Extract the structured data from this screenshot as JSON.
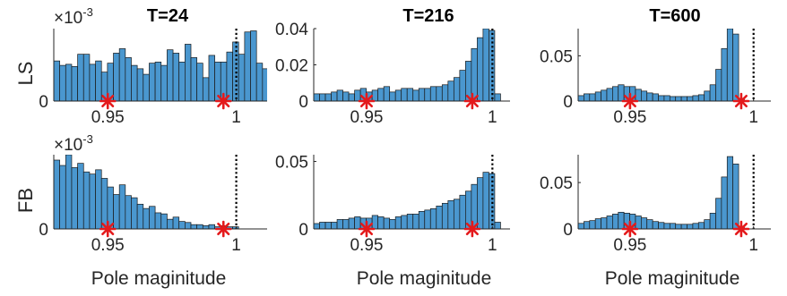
{
  "figure": {
    "row_labels": [
      "LS",
      "FB"
    ],
    "column_titles": [
      "T=24",
      "T=216",
      "T=600"
    ],
    "xlabel": "Pole maginitude",
    "exponent_label": "×10",
    "exponent_value": "-3",
    "colors": {
      "bar_fill": "#4a97cf",
      "bar_edge": "#1a1a1a",
      "marker": "#e41a1c",
      "vline": "#000000",
      "axis": "#262626"
    }
  },
  "chart_data": [
    {
      "type": "bar",
      "row": "LS",
      "title": "T=24",
      "xlabel": "",
      "xlim": [
        0.929,
        1.012
      ],
      "ylim": [
        0,
        0.0065
      ],
      "xticks": [
        0.95,
        1
      ],
      "xtick_labels": [
        "0.95",
        "1"
      ],
      "yticks": [
        0
      ],
      "ytick_labels": [
        "0"
      ],
      "y_exponent": "-3",
      "grid": false,
      "bins": {
        "start": 0.929,
        "width": 0.00232
      },
      "values": [
        0.0036,
        0.0032,
        0.0033,
        0.0031,
        0.0042,
        0.0042,
        0.0033,
        0.0036,
        0.0026,
        0.0034,
        0.0043,
        0.0047,
        0.0039,
        0.0032,
        0.0029,
        0.0024,
        0.0034,
        0.0035,
        0.0032,
        0.0046,
        0.0043,
        0.0035,
        0.0051,
        0.0039,
        0.0034,
        0.0021,
        0.0041,
        0.0035,
        0.0035,
        0.0044,
        0.0053,
        0.0042,
        0.0062,
        0.0063,
        0.0034,
        0.0029
      ],
      "markers_x": [
        0.95,
        0.995
      ],
      "vline_x": 1
    },
    {
      "type": "bar",
      "row": "LS",
      "title": "T=216",
      "xlabel": "",
      "xlim": [
        0.929,
        1.007
      ],
      "ylim": [
        0,
        0.04
      ],
      "xticks": [
        0.95,
        1
      ],
      "xtick_labels": [
        "0.95",
        "1"
      ],
      "yticks": [
        0,
        0.02,
        0.04
      ],
      "ytick_labels": [
        "0",
        "0.02",
        "0.04"
      ],
      "grid": false,
      "bins": {
        "start": 0.929,
        "width": 0.00232
      },
      "values": [
        0.004,
        0.004,
        0.004,
        0.005,
        0.006,
        0.005,
        0.004,
        0.006,
        0.007,
        0.005,
        0.006,
        0.007,
        0.008,
        0.005,
        0.006,
        0.007,
        0.007,
        0.006,
        0.007,
        0.007,
        0.008,
        0.008,
        0.009,
        0.011,
        0.013,
        0.017,
        0.022,
        0.029,
        0.035,
        0.04,
        0.039,
        0.004
      ],
      "markers_x": [
        0.95,
        0.992
      ],
      "vline_x": 1
    },
    {
      "type": "bar",
      "row": "LS",
      "title": "T=600",
      "xlabel": "",
      "xlim": [
        0.929,
        1.007
      ],
      "ylim": [
        0,
        0.08
      ],
      "xticks": [
        0.95,
        1
      ],
      "xtick_labels": [
        "0.95",
        "1"
      ],
      "yticks": [
        0,
        0.05
      ],
      "ytick_labels": [
        "0",
        "0.05"
      ],
      "grid": false,
      "bins": {
        "start": 0.929,
        "width": 0.00232
      },
      "values": [
        0.006,
        0.008,
        0.008,
        0.01,
        0.012,
        0.014,
        0.016,
        0.018,
        0.016,
        0.016,
        0.013,
        0.011,
        0.009,
        0.008,
        0.006,
        0.006,
        0.005,
        0.005,
        0.005,
        0.005,
        0.006,
        0.007,
        0.011,
        0.018,
        0.035,
        0.058,
        0.08,
        0.074,
        0.003
      ],
      "markers_x": [
        0.95,
        0.995
      ],
      "vline_x": 1
    },
    {
      "type": "bar",
      "row": "FB",
      "title": "",
      "xlabel": "Pole maginitude",
      "xlim": [
        0.929,
        1.012
      ],
      "ylim": [
        0,
        0.0069
      ],
      "xticks": [
        0.95,
        1
      ],
      "xtick_labels": [
        "0.95",
        "1"
      ],
      "yticks": [
        0
      ],
      "ytick_labels": [
        "0"
      ],
      "y_exponent": "-3",
      "grid": false,
      "bins": {
        "start": 0.929,
        "width": 0.00232
      },
      "values": [
        0.0064,
        0.0059,
        0.0069,
        0.0057,
        0.0061,
        0.0053,
        0.0051,
        0.0055,
        0.0047,
        0.0039,
        0.0032,
        0.0041,
        0.0031,
        0.0029,
        0.0023,
        0.0019,
        0.0021,
        0.0015,
        0.0014,
        0.0009,
        0.0011,
        0.0007,
        0.0006,
        0.0004,
        0.0004,
        0.0003,
        0.0004,
        0.0002,
        0.0003,
        0.0002,
        0.0002
      ],
      "markers_x": [
        0.95,
        0.995
      ],
      "vline_x": 1
    },
    {
      "type": "bar",
      "row": "FB",
      "title": "",
      "xlabel": "Pole maginitude",
      "xlim": [
        0.929,
        1.007
      ],
      "ylim": [
        0,
        0.055
      ],
      "xticks": [
        0.95,
        1
      ],
      "xtick_labels": [
        "0.95",
        "1"
      ],
      "yticks": [
        0,
        0.05
      ],
      "ytick_labels": [
        "0",
        "0.05"
      ],
      "grid": false,
      "bins": {
        "start": 0.929,
        "width": 0.00232
      },
      "values": [
        0.004,
        0.005,
        0.005,
        0.005,
        0.007,
        0.007,
        0.008,
        0.009,
        0.008,
        0.008,
        0.01,
        0.009,
        0.008,
        0.007,
        0.009,
        0.01,
        0.011,
        0.011,
        0.013,
        0.014,
        0.015,
        0.017,
        0.019,
        0.021,
        0.022,
        0.025,
        0.028,
        0.033,
        0.038,
        0.042,
        0.041,
        0.005
      ],
      "markers_x": [
        0.95,
        0.992
      ],
      "vline_x": 1
    },
    {
      "type": "bar",
      "row": "FB",
      "title": "",
      "xlabel": "Pole maginitude",
      "xlim": [
        0.929,
        1.007
      ],
      "ylim": [
        0,
        0.08
      ],
      "xticks": [
        0.95,
        1
      ],
      "xtick_labels": [
        "0.95",
        "1"
      ],
      "yticks": [
        0,
        0.05
      ],
      "ytick_labels": [
        "0",
        "0.05"
      ],
      "grid": false,
      "bins": {
        "start": 0.929,
        "width": 0.00232
      },
      "values": [
        0.006,
        0.008,
        0.009,
        0.011,
        0.012,
        0.014,
        0.016,
        0.018,
        0.017,
        0.016,
        0.014,
        0.012,
        0.01,
        0.008,
        0.007,
        0.006,
        0.006,
        0.005,
        0.005,
        0.005,
        0.006,
        0.007,
        0.01,
        0.017,
        0.033,
        0.056,
        0.078,
        0.07,
        0.003
      ],
      "markers_x": [
        0.95,
        0.995
      ],
      "vline_x": 1
    }
  ]
}
